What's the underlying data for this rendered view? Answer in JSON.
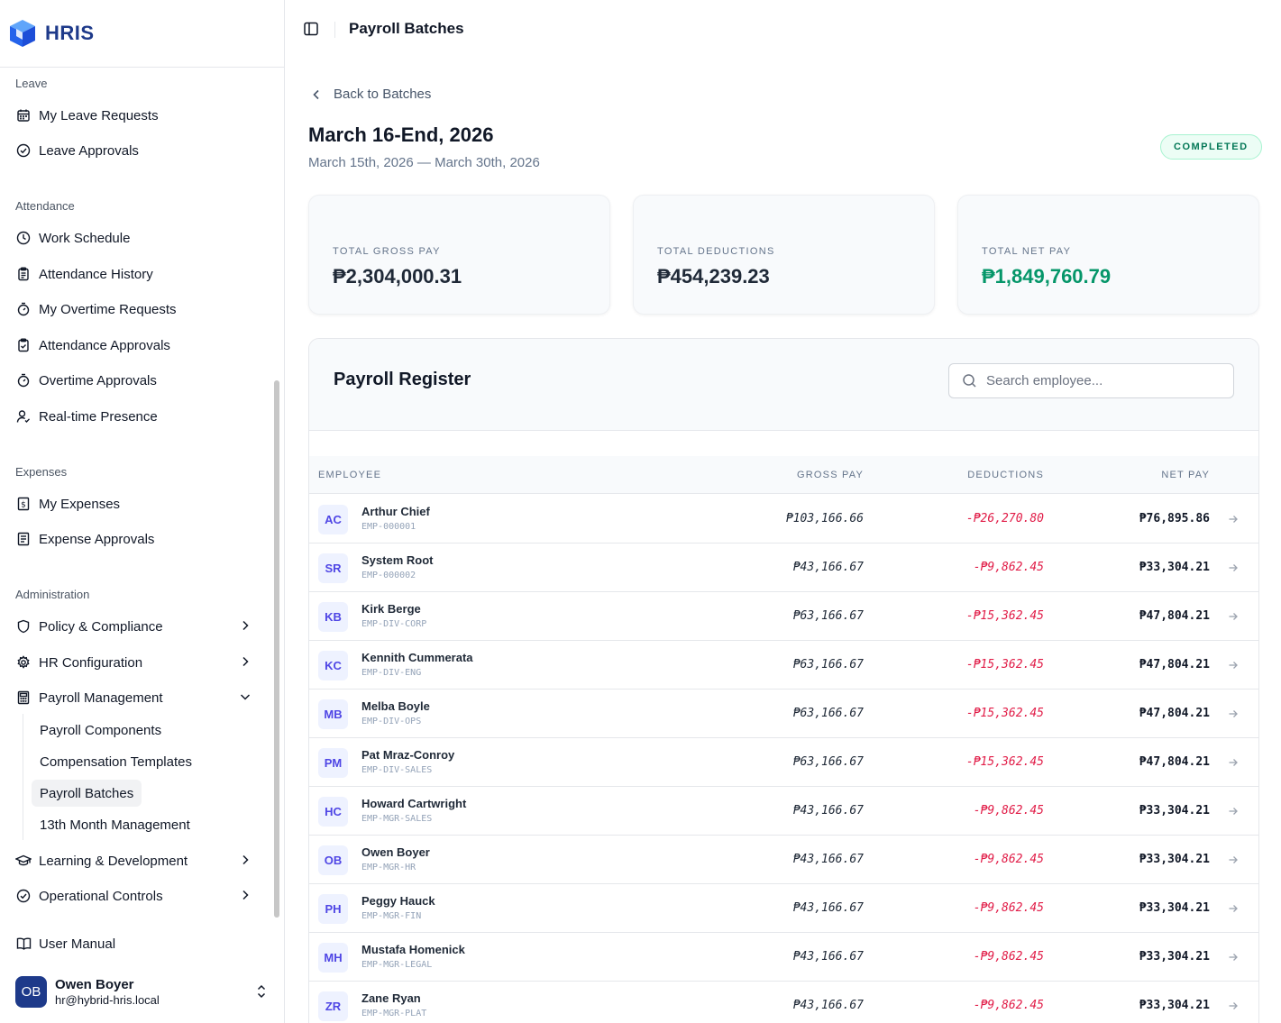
{
  "brand": {
    "name": "HRIS"
  },
  "sidebar": {
    "sections": {
      "leave": "Leave",
      "attendance": "Attendance",
      "expenses": "Expenses",
      "administration": "Administration"
    },
    "items": {
      "my_leave_requests": "My Leave Requests",
      "leave_approvals": "Leave Approvals",
      "work_schedule": "Work Schedule",
      "attendance_history": "Attendance History",
      "my_overtime_requests": "My Overtime Requests",
      "attendance_approvals": "Attendance Approvals",
      "overtime_approvals": "Overtime Approvals",
      "realtime_presence": "Real-time Presence",
      "my_expenses": "My Expenses",
      "expense_approvals": "Expense Approvals",
      "policy_compliance": "Policy & Compliance",
      "hr_configuration": "HR Configuration",
      "payroll_management": "Payroll Management",
      "payroll_components": "Payroll Components",
      "compensation_templates": "Compensation Templates",
      "payroll_batches": "Payroll Batches",
      "thirteenth_month": "13th Month Management",
      "learning_development": "Learning & Development",
      "operational_controls": "Operational Controls",
      "user_manual": "User Manual"
    },
    "user": {
      "initials": "OB",
      "name": "Owen Boyer",
      "email": "hr@hybrid-hris.local"
    }
  },
  "header": {
    "title": "Payroll Batches"
  },
  "page": {
    "back_label": "Back to Batches",
    "title": "March 16-End, 2026",
    "subtitle": "March 15th, 2026 — March 30th, 2026",
    "status": "COMPLETED"
  },
  "summary": {
    "gross": {
      "label": "TOTAL GROSS PAY",
      "value": "₱2,304,000.31"
    },
    "deductions": {
      "label": "TOTAL DEDUCTIONS",
      "value": "₱454,239.23"
    },
    "net": {
      "label": "TOTAL NET PAY",
      "value": "₱1,849,760.79"
    }
  },
  "register": {
    "title": "Payroll Register",
    "search_placeholder": "Search employee...",
    "columns": {
      "employee": "EMPLOYEE",
      "gross": "GROSS PAY",
      "deductions": "DEDUCTIONS",
      "net": "NET PAY"
    },
    "rows": [
      {
        "initials": "AC",
        "name": "Arthur Chief",
        "code": "EMP-000001",
        "gross": "₱103,166.66",
        "deductions": "-₱26,270.80",
        "net": "₱76,895.86"
      },
      {
        "initials": "SR",
        "name": "System Root",
        "code": "EMP-000002",
        "gross": "₱43,166.67",
        "deductions": "-₱9,862.45",
        "net": "₱33,304.21"
      },
      {
        "initials": "KB",
        "name": "Kirk Berge",
        "code": "EMP-DIV-CORP",
        "gross": "₱63,166.67",
        "deductions": "-₱15,362.45",
        "net": "₱47,804.21"
      },
      {
        "initials": "KC",
        "name": "Kennith Cummerata",
        "code": "EMP-DIV-ENG",
        "gross": "₱63,166.67",
        "deductions": "-₱15,362.45",
        "net": "₱47,804.21"
      },
      {
        "initials": "MB",
        "name": "Melba Boyle",
        "code": "EMP-DIV-OPS",
        "gross": "₱63,166.67",
        "deductions": "-₱15,362.45",
        "net": "₱47,804.21"
      },
      {
        "initials": "PM",
        "name": "Pat Mraz-Conroy",
        "code": "EMP-DIV-SALES",
        "gross": "₱63,166.67",
        "deductions": "-₱15,362.45",
        "net": "₱47,804.21"
      },
      {
        "initials": "HC",
        "name": "Howard Cartwright",
        "code": "EMP-MGR-SALES",
        "gross": "₱43,166.67",
        "deductions": "-₱9,862.45",
        "net": "₱33,304.21"
      },
      {
        "initials": "OB",
        "name": "Owen Boyer",
        "code": "EMP-MGR-HR",
        "gross": "₱43,166.67",
        "deductions": "-₱9,862.45",
        "net": "₱33,304.21"
      },
      {
        "initials": "PH",
        "name": "Peggy Hauck",
        "code": "EMP-MGR-FIN",
        "gross": "₱43,166.67",
        "deductions": "-₱9,862.45",
        "net": "₱33,304.21"
      },
      {
        "initials": "MH",
        "name": "Mustafa Homenick",
        "code": "EMP-MGR-LEGAL",
        "gross": "₱43,166.67",
        "deductions": "-₱9,862.45",
        "net": "₱33,304.21"
      },
      {
        "initials": "ZR",
        "name": "Zane Ryan",
        "code": "EMP-MGR-PLAT",
        "gross": "₱43,166.67",
        "deductions": "-₱9,862.45",
        "net": "₱33,304.21"
      }
    ]
  },
  "colors": {
    "brand": "#1e3a8a",
    "accent_green": "#059669",
    "deduction_red": "#e11d48",
    "avatar_bg": "#eef2ff",
    "avatar_text": "#4f46e5"
  },
  "icons": [
    "hris-logo-icon",
    "calendar-icon",
    "check-circle-icon",
    "clock-icon",
    "clipboard-icon",
    "timer-icon",
    "clipboard-check-icon",
    "user-check-icon",
    "receipt-icon",
    "file-text-icon",
    "shield-icon",
    "gear-icon",
    "calculator-icon",
    "graduation-cap-icon",
    "book-open-icon",
    "chevron-right-icon",
    "chevron-down-icon",
    "chevrons-up-down-icon",
    "sidebar-toggle-icon",
    "chevron-left-icon",
    "search-icon",
    "arrow-right-icon"
  ]
}
